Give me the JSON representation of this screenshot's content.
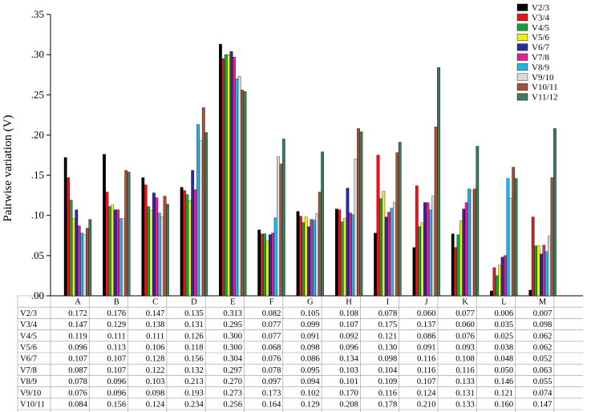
{
  "chart_data": {
    "type": "bar",
    "ylabel": "Pairwise variation (V)",
    "ylim": [
      0,
      0.35
    ],
    "yticks": [
      ".00",
      ".05",
      ".10",
      ".15",
      ".20",
      ".25",
      ".30",
      ".35"
    ],
    "ytick_values": [
      0,
      0.05,
      0.1,
      0.15,
      0.2,
      0.25,
      0.3,
      0.35
    ],
    "legend_position": "top-right",
    "grid": false,
    "categories": [
      "A",
      "B",
      "C",
      "D",
      "E",
      "F",
      "G",
      "H",
      "I",
      "J",
      "K",
      "L",
      "M"
    ],
    "series": [
      {
        "name": "V2/3",
        "color": "#000000",
        "values": [
          0.172,
          0.176,
          0.147,
          0.135,
          0.313,
          0.082,
          0.105,
          0.108,
          0.078,
          0.06,
          0.077,
          0.006,
          0.007
        ],
        "table": [
          "0.172",
          "0.176",
          "0.147",
          "0.135",
          "0.313",
          "0.082",
          "0.105",
          "0.108",
          "0.078",
          "0.060",
          "0.077",
          "0.006",
          "0.007"
        ]
      },
      {
        "name": "V3/4",
        "color": "#e8141c",
        "values": [
          0.147,
          0.129,
          0.138,
          0.131,
          0.295,
          0.077,
          0.099,
          0.107,
          0.175,
          0.137,
          0.06,
          0.035,
          0.098
        ],
        "table": [
          "0.147",
          "0.129",
          "0.138",
          "0.131",
          "0.295",
          "0.077",
          "0.099",
          "0.107",
          "0.175",
          "0.137",
          "0.060",
          "0.035",
          "0.098"
        ]
      },
      {
        "name": "V4/5",
        "color": "#1a9e3c",
        "values": [
          0.119,
          0.111,
          0.111,
          0.126,
          0.3,
          0.077,
          0.091,
          0.092,
          0.121,
          0.086,
          0.076,
          0.025,
          0.062
        ],
        "table": [
          "0.119",
          "0.111",
          "0.111",
          "0.126",
          "0.300",
          "0.077",
          "0.091",
          "0.092",
          "0.121",
          "0.086",
          "0.076",
          "0.025",
          "0.062"
        ]
      },
      {
        "name": "V5/6",
        "color": "#f0ec1a",
        "values": [
          0.096,
          0.113,
          0.106,
          0.118,
          0.3,
          0.068,
          0.098,
          0.096,
          0.13,
          0.091,
          0.093,
          0.038,
          0.062
        ],
        "table": [
          "0.096",
          "0.113",
          "0.106",
          "0.118",
          "0.300",
          "0.068",
          "0.098",
          "0.096",
          "0.130",
          "0.091",
          "0.093",
          "0.038",
          "0.062"
        ]
      },
      {
        "name": "V6/7",
        "color": "#2b2b9c",
        "values": [
          0.107,
          0.107,
          0.128,
          0.156,
          0.304,
          0.076,
          0.086,
          0.134,
          0.098,
          0.116,
          0.108,
          0.048,
          0.052
        ],
        "table": [
          "0.107",
          "0.107",
          "0.128",
          "0.156",
          "0.304",
          "0.076",
          "0.086",
          "0.134",
          "0.098",
          "0.116",
          "0.108",
          "0.048",
          "0.052"
        ]
      },
      {
        "name": "V7/8",
        "color": "#e0208c",
        "values": [
          0.087,
          0.107,
          0.122,
          0.132,
          0.297,
          0.078,
          0.095,
          0.103,
          0.104,
          0.116,
          0.116,
          0.05,
          0.063
        ],
        "table": [
          "0.087",
          "0.107",
          "0.122",
          "0.132",
          "0.297",
          "0.078",
          "0.095",
          "0.103",
          "0.104",
          "0.116",
          "0.116",
          "0.050",
          "0.063"
        ]
      },
      {
        "name": "V8/9",
        "color": "#25b4e8",
        "values": [
          0.078,
          0.096,
          0.103,
          0.213,
          0.27,
          0.097,
          0.094,
          0.101,
          0.109,
          0.107,
          0.133,
          0.146,
          0.055
        ],
        "table": [
          "0.078",
          "0.096",
          "0.103",
          "0.213",
          "0.270",
          "0.097",
          "0.094",
          "0.101",
          "0.109",
          "0.107",
          "0.133",
          "0.146",
          "0.055"
        ]
      },
      {
        "name": "V9/10",
        "color": "#d8d8d8",
        "values": [
          0.076,
          0.096,
          0.098,
          0.193,
          0.273,
          0.173,
          0.102,
          0.17,
          0.116,
          0.124,
          0.131,
          0.121,
          0.074
        ],
        "table": [
          "0.076",
          "0.096",
          "0.098",
          "0.193",
          "0.273",
          "0.173",
          "0.102",
          "0.170",
          "0.116",
          "0.124",
          "0.131",
          "0.121",
          "0.074"
        ]
      },
      {
        "name": "V10/11",
        "color": "#a0523a",
        "values": [
          0.084,
          0.156,
          0.124,
          0.234,
          0.256,
          0.164,
          0.129,
          0.208,
          0.178,
          0.21,
          0.133,
          0.16,
          0.147
        ],
        "table": [
          "0.084",
          "0.156",
          "0.124",
          "0.234",
          "0.256",
          "0.164",
          "0.129",
          "0.208",
          "0.178",
          "0.210",
          "0.133",
          "0.160",
          "0.147"
        ]
      },
      {
        "name": "V11/12",
        "color": "#3e7a5a",
        "values": [
          0.095,
          0.154,
          0.114,
          0.203,
          0.254,
          0.195,
          0.179,
          0.204,
          0.191,
          0.284,
          0.186,
          0.146,
          0.208
        ],
        "table": [
          "0.095",
          "0.154",
          "0.114",
          "0.203",
          "0.254",
          "0.195",
          "0.179",
          "0.204",
          "0.191",
          "0.284",
          "0.186",
          "0.146",
          "0.208"
        ]
      }
    ]
  }
}
